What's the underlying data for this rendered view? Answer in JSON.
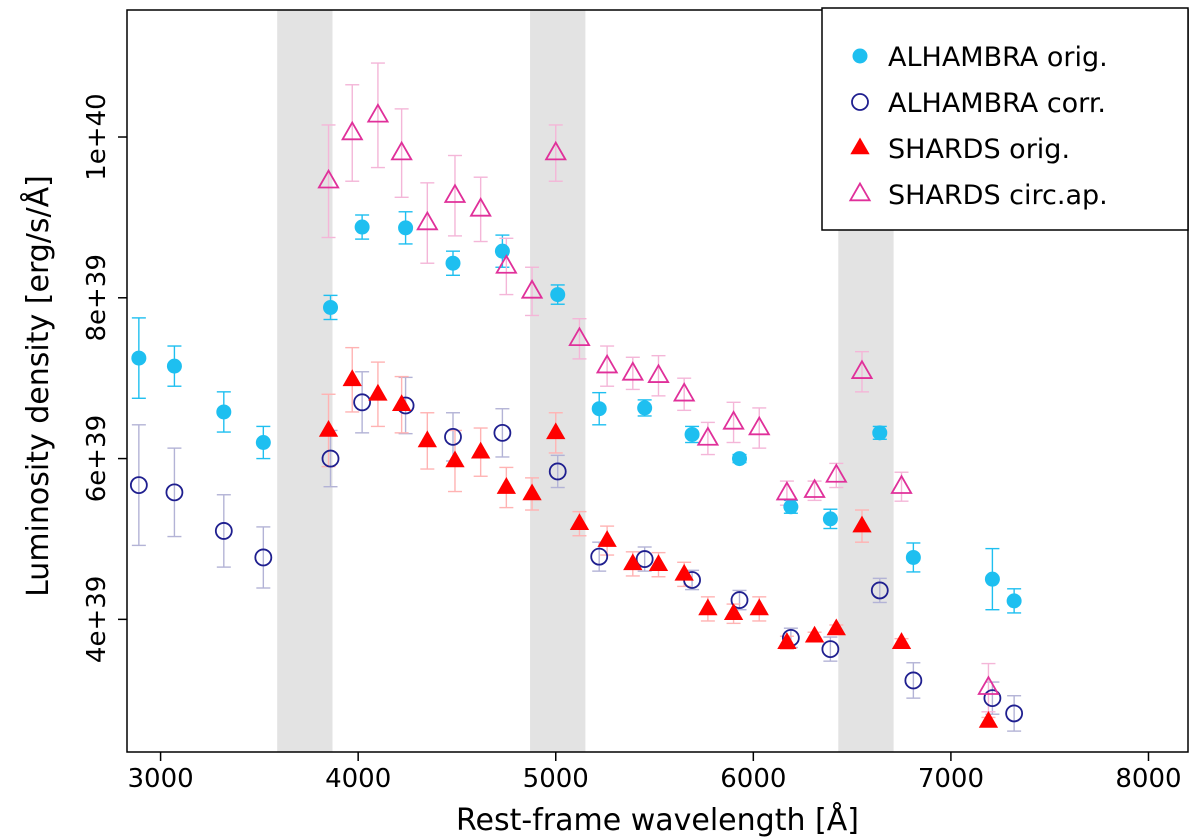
{
  "chart_data": {
    "type": "scatter",
    "title": "",
    "xlabel": "Rest-frame wavelength [Å]",
    "ylabel": "Luminosity density [erg/s/Å]",
    "xlim": [
      2830,
      8200
    ],
    "ylim": [
      2.35e+39,
      1.158e+40
    ],
    "x_ticks": [
      3000,
      4000,
      5000,
      6000,
      7000,
      8000
    ],
    "x_tick_labels": [
      "3000",
      "4000",
      "5000",
      "6000",
      "7000",
      "8000"
    ],
    "y_ticks": [
      4e+39,
      6e+39,
      8e+39,
      1e+40
    ],
    "y_tick_labels": [
      "4e+39",
      "6e+39",
      "8e+39",
      "1e+40"
    ],
    "shaded_bands": [
      [
        3590,
        3870
      ],
      [
        4870,
        5150
      ],
      [
        6430,
        6710
      ]
    ],
    "legend_position": "top-right",
    "series": [
      {
        "name": "ALHAMBRA orig.",
        "marker": "filled-circle",
        "color": "#1ebff0",
        "errcolor": "#1ebff0",
        "x": [
          2890,
          3070,
          3320,
          3520,
          3860,
          4020,
          4240,
          4480,
          4730,
          5010,
          5220,
          5450,
          5690,
          5930,
          6190,
          6390,
          6640,
          6810,
          7210,
          7320
        ],
        "y": [
          7.25e+39,
          7.15e+39,
          6.58e+39,
          6.2e+39,
          7.88e+39,
          8.88e+39,
          8.87e+39,
          8.43e+39,
          8.58e+39,
          8.04e+39,
          6.62e+39,
          6.63e+39,
          6.3e+39,
          6e+39,
          5.4e+39,
          5.25e+39,
          6.32e+39,
          4.77e+39,
          4.5e+39,
          4.23e+39
        ],
        "err": [
          5e+38,
          2.5e+38,
          2.5e+38,
          2e+38,
          1.5e+38,
          1.5e+38,
          2e+38,
          1.5e+38,
          2e+38,
          1.2e+38,
          2e+38,
          1e+38,
          1e+38,
          5e+37,
          8e+37,
          1.2e+38,
          8e+37,
          1.8e+38,
          3.8e+38,
          1.5e+38
        ]
      },
      {
        "name": "ALHAMBRA corr.",
        "marker": "open-circle",
        "color": "#1f1f8f",
        "errcolor": "#b3b3d6",
        "x": [
          2890,
          3070,
          3320,
          3520,
          3860,
          4020,
          4240,
          4480,
          4730,
          5010,
          5220,
          5450,
          5690,
          5930,
          6190,
          6390,
          6640,
          6810,
          7210,
          7320
        ],
        "y": [
          5.67e+39,
          5.58e+39,
          5.1e+39,
          4.77e+39,
          6e+39,
          6.7e+39,
          6.66e+39,
          6.27e+39,
          6.32e+39,
          5.84e+39,
          4.78e+39,
          4.75e+39,
          4.49e+39,
          4.24e+39,
          3.77e+39,
          3.63e+39,
          4.36e+39,
          3.24e+39,
          3.02e+39,
          2.83e+39
        ],
        "err": [
          7.5e+38,
          5.5e+38,
          4.5e+38,
          3.8e+38,
          3.5e+38,
          3.8e+38,
          3.5e+38,
          3e+38,
          3e+38,
          2e+38,
          1.8e+38,
          1.5e+38,
          1.2e+38,
          1.2e+38,
          1.2e+38,
          1.5e+38,
          1.5e+38,
          2.2e+38,
          2e+38,
          2.2e+38
        ]
      },
      {
        "name": "SHARDS orig.",
        "marker": "filled-triangle",
        "color": "#ff0000",
        "errcolor": "#ffb3b3",
        "x": [
          3850,
          3970,
          4100,
          4220,
          4350,
          4490,
          4620,
          4750,
          4880,
          5000,
          5120,
          5260,
          5390,
          5520,
          5650,
          5770,
          5900,
          6030,
          6170,
          6310,
          6420,
          6550,
          6750,
          7190
        ],
        "y": [
          6.35e+39,
          6.98e+39,
          6.8e+39,
          6.67e+39,
          6.22e+39,
          5.97e+39,
          6.08e+39,
          5.64e+39,
          5.56e+39,
          6.32e+39,
          5.19e+39,
          4.98e+39,
          4.69e+39,
          4.68e+39,
          4.56e+39,
          4.13e+39,
          4.07e+39,
          4.13e+39,
          3.71e+39,
          3.79e+39,
          3.88e+39,
          5.16e+39,
          3.71e+39,
          2.73e+39
        ],
        "err": [
          4.5e+38,
          4e+38,
          4e+38,
          3.5e+38,
          3.5e+38,
          3.8e+38,
          3e+38,
          2.5e+38,
          2e+38,
          2.5e+38,
          1.5e+38,
          1.8e+38,
          1.5e+38,
          1.5e+38,
          1.5e+38,
          1.5e+38,
          1.2e+38,
          1.5e+38,
          8e+37,
          5e+37,
          5e+37,
          2e+38,
          5e+37,
          5e+37
        ]
      },
      {
        "name": "SHARDS circ.ap.",
        "marker": "open-triangle",
        "color": "#e0309a",
        "errcolor": "#f4b6d8",
        "x": [
          3850,
          3970,
          4100,
          4220,
          4350,
          4490,
          4620,
          4750,
          4880,
          5000,
          5120,
          5260,
          5390,
          5520,
          5650,
          5770,
          5900,
          6030,
          6170,
          6310,
          6420,
          6550,
          6750,
          7190
        ],
        "y": [
          9.45e+39,
          1.005e+40,
          1.027e+40,
          9.8e+39,
          8.93e+39,
          9.27e+39,
          9.1e+39,
          8.39e+39,
          8.08e+39,
          9.8e+39,
          7.49e+39,
          7.15e+39,
          7.06e+39,
          7.03e+39,
          6.8e+39,
          6.25e+39,
          6.45e+39,
          6.38e+39,
          5.57e+39,
          5.6e+39,
          5.79e+39,
          7.08e+39,
          5.65e+39,
          3.15e+39
        ],
        "err": [
          7e+38,
          6e+38,
          6.5e+38,
          5.5e+38,
          5e+38,
          5e+38,
          4e+38,
          3.5e+38,
          3e+38,
          3.5e+38,
          2.5e+38,
          2.5e+38,
          2e+38,
          2.5e+38,
          2e+38,
          2e+38,
          2.5e+38,
          2.5e+38,
          1.5e+38,
          1.2e+38,
          1.5e+38,
          2.5e+38,
          1.8e+38,
          3e+38
        ]
      }
    ]
  }
}
